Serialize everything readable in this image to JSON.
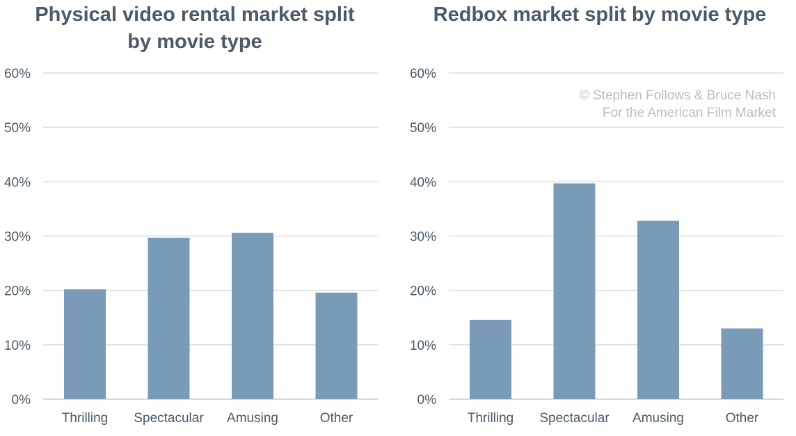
{
  "colors": {
    "bar": "#7a9bb8",
    "title": "#4a5a66",
    "grid": "#d9dde1",
    "note": "#b8bec4"
  },
  "chart_data": [
    {
      "type": "bar",
      "title": "Physical video rental market split by movie type",
      "categories": [
        "Thrilling",
        "Spectacular",
        "Amusing",
        "Other"
      ],
      "values": [
        20.2,
        29.7,
        30.6,
        19.6
      ],
      "y_ticks": [
        "0%",
        "10%",
        "20%",
        "30%",
        "40%",
        "50%",
        "60%"
      ],
      "ylim": [
        0,
        60
      ],
      "grid": true,
      "xlabel": "",
      "ylabel": ""
    },
    {
      "type": "bar",
      "title": "Redbox market split by movie type",
      "categories": [
        "Thrilling",
        "Spectacular",
        "Amusing",
        "Other"
      ],
      "values": [
        14.6,
        39.7,
        32.8,
        13.0
      ],
      "y_ticks": [
        "0%",
        "10%",
        "20%",
        "30%",
        "40%",
        "50%",
        "60%"
      ],
      "ylim": [
        0,
        60
      ],
      "grid": true,
      "xlabel": "",
      "ylabel": "",
      "annotation": [
        "© Stephen Follows & Bruce Nash",
        "For the American Film Market"
      ]
    }
  ]
}
